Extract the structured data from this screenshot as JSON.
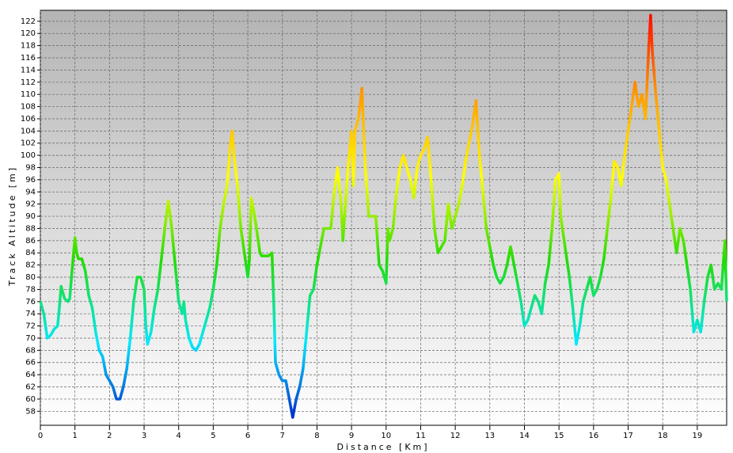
{
  "chart_data": {
    "type": "line",
    "x_label": "Distance [Km]",
    "y_label": "Track Altitude [m]",
    "grid": true,
    "colors": [
      "#0018c8",
      "#00e8ff",
      "#22dd00",
      "#ffff00",
      "#ff9900",
      "#ff0000"
    ],
    "xlim": [
      0,
      19.85
    ],
    "ylim": [
      55.7,
      123.8
    ],
    "xticks": [
      0,
      1,
      2,
      3,
      4,
      5,
      6,
      7,
      8,
      9,
      10,
      11,
      12,
      13,
      14,
      15,
      16,
      17,
      18,
      19
    ],
    "yticks": [
      58,
      60,
      62,
      64,
      66,
      68,
      70,
      72,
      74,
      76,
      78,
      80,
      82,
      84,
      86,
      88,
      90,
      92,
      94,
      96,
      98,
      100,
      102,
      104,
      106,
      108,
      110,
      112,
      114,
      116,
      118,
      120,
      122
    ],
    "series": [
      {
        "name": "Track Altitude",
        "x": [
          0,
          0.1,
          0.2,
          0.3,
          0.4,
          0.5,
          0.55,
          0.6,
          0.7,
          0.8,
          0.85,
          0.9,
          1.0,
          1.05,
          1.1,
          1.2,
          1.3,
          1.4,
          1.5,
          1.6,
          1.7,
          1.8,
          1.9,
          2.0,
          2.1,
          2.2,
          2.3,
          2.4,
          2.5,
          2.6,
          2.7,
          2.8,
          2.9,
          3.0,
          3.05,
          3.1,
          3.2,
          3.3,
          3.4,
          3.5,
          3.6,
          3.7,
          3.8,
          3.9,
          4.0,
          4.1,
          4.15,
          4.2,
          4.3,
          4.4,
          4.5,
          4.6,
          4.7,
          4.8,
          4.9,
          5.0,
          5.1,
          5.2,
          5.3,
          5.4,
          5.5,
          5.55,
          5.6,
          5.7,
          5.8,
          5.9,
          6.0,
          6.05,
          6.1,
          6.2,
          6.3,
          6.35,
          6.4,
          6.6,
          6.7,
          6.75,
          6.8,
          6.9,
          7.0,
          7.1,
          7.2,
          7.3,
          7.4,
          7.5,
          7.6,
          7.7,
          7.8,
          7.9,
          8.0,
          8.1,
          8.2,
          8.3,
          8.4,
          8.5,
          8.6,
          8.7,
          8.75,
          8.8,
          8.9,
          9.0,
          9.05,
          9.1,
          9.2,
          9.3,
          9.35,
          9.4,
          9.5,
          9.6,
          9.7,
          9.8,
          9.9,
          10.0,
          10.05,
          10.1,
          10.2,
          10.3,
          10.4,
          10.5,
          10.6,
          10.7,
          10.8,
          10.9,
          11.0,
          11.1,
          11.2,
          11.3,
          11.4,
          11.5,
          11.6,
          11.7,
          11.8,
          11.9,
          12.0,
          12.1,
          12.2,
          12.3,
          12.4,
          12.5,
          12.6,
          12.7,
          12.8,
          12.9,
          13.0,
          13.1,
          13.2,
          13.3,
          13.4,
          13.5,
          13.6,
          13.7,
          13.8,
          13.9,
          14.0,
          14.1,
          14.2,
          14.3,
          14.4,
          14.5,
          14.6,
          14.7,
          14.8,
          14.9,
          15.0,
          15.05,
          15.1,
          15.2,
          15.3,
          15.4,
          15.5,
          15.6,
          15.7,
          15.8,
          15.9,
          16.0,
          16.1,
          16.2,
          16.3,
          16.4,
          16.5,
          16.6,
          16.7,
          16.8,
          16.9,
          17.0,
          17.1,
          17.2,
          17.3,
          17.4,
          17.5,
          17.6,
          17.65,
          17.7,
          17.8,
          17.9,
          18.0,
          18.1,
          18.2,
          18.3,
          18.4,
          18.5,
          18.6,
          18.7,
          18.8,
          18.9,
          19.0,
          19.1,
          19.2,
          19.3,
          19.4,
          19.5,
          19.6,
          19.7,
          19.8,
          19.85
        ],
        "values": [
          76,
          74,
          70,
          70.5,
          71.5,
          72,
          75,
          78.5,
          76.5,
          76,
          76.5,
          80,
          86.5,
          84,
          83,
          83,
          81,
          77,
          75,
          71,
          68,
          67,
          64,
          63,
          62,
          60,
          60,
          62,
          65,
          70,
          76,
          80,
          80,
          78,
          72,
          69,
          71,
          75,
          78,
          83,
          88,
          92.5,
          88,
          82,
          76,
          74,
          76,
          73,
          70,
          68.5,
          68,
          69,
          71,
          73,
          75,
          78,
          82,
          88,
          92,
          95,
          102,
          104,
          100,
          95,
          88,
          84,
          80,
          83,
          93,
          90,
          86,
          84,
          83.5,
          83.5,
          84,
          76,
          66,
          64,
          63,
          63,
          60,
          57,
          60,
          62,
          65,
          71,
          77,
          78,
          82,
          85,
          88,
          88,
          88,
          94,
          98,
          92,
          86,
          90,
          98,
          104,
          95,
          104,
          106,
          111,
          104,
          98,
          90,
          90,
          90,
          82,
          81,
          79,
          88,
          86,
          88,
          94,
          98,
          100,
          98,
          96,
          93,
          98,
          100,
          101,
          103,
          96,
          88,
          84,
          85,
          86,
          92,
          88,
          90,
          92,
          95,
          99,
          102,
          105,
          109,
          100,
          94,
          88,
          85,
          82,
          80,
          79,
          80,
          82,
          85,
          82,
          79,
          76,
          72,
          73,
          75,
          77,
          76,
          74,
          79,
          82,
          88,
          96,
          97,
          90,
          88,
          84,
          80,
          75,
          69,
          72,
          76,
          78,
          80,
          77,
          78,
          80,
          83,
          88,
          93,
          99,
          98,
          95,
          100,
          104,
          108,
          112,
          108,
          110,
          106,
          118,
          123,
          117,
          110,
          104,
          98,
          96,
          92,
          88,
          84,
          88,
          86,
          82,
          78,
          71,
          73,
          71,
          76,
          80,
          82,
          78,
          79,
          78,
          86,
          76
        ]
      }
    ]
  }
}
